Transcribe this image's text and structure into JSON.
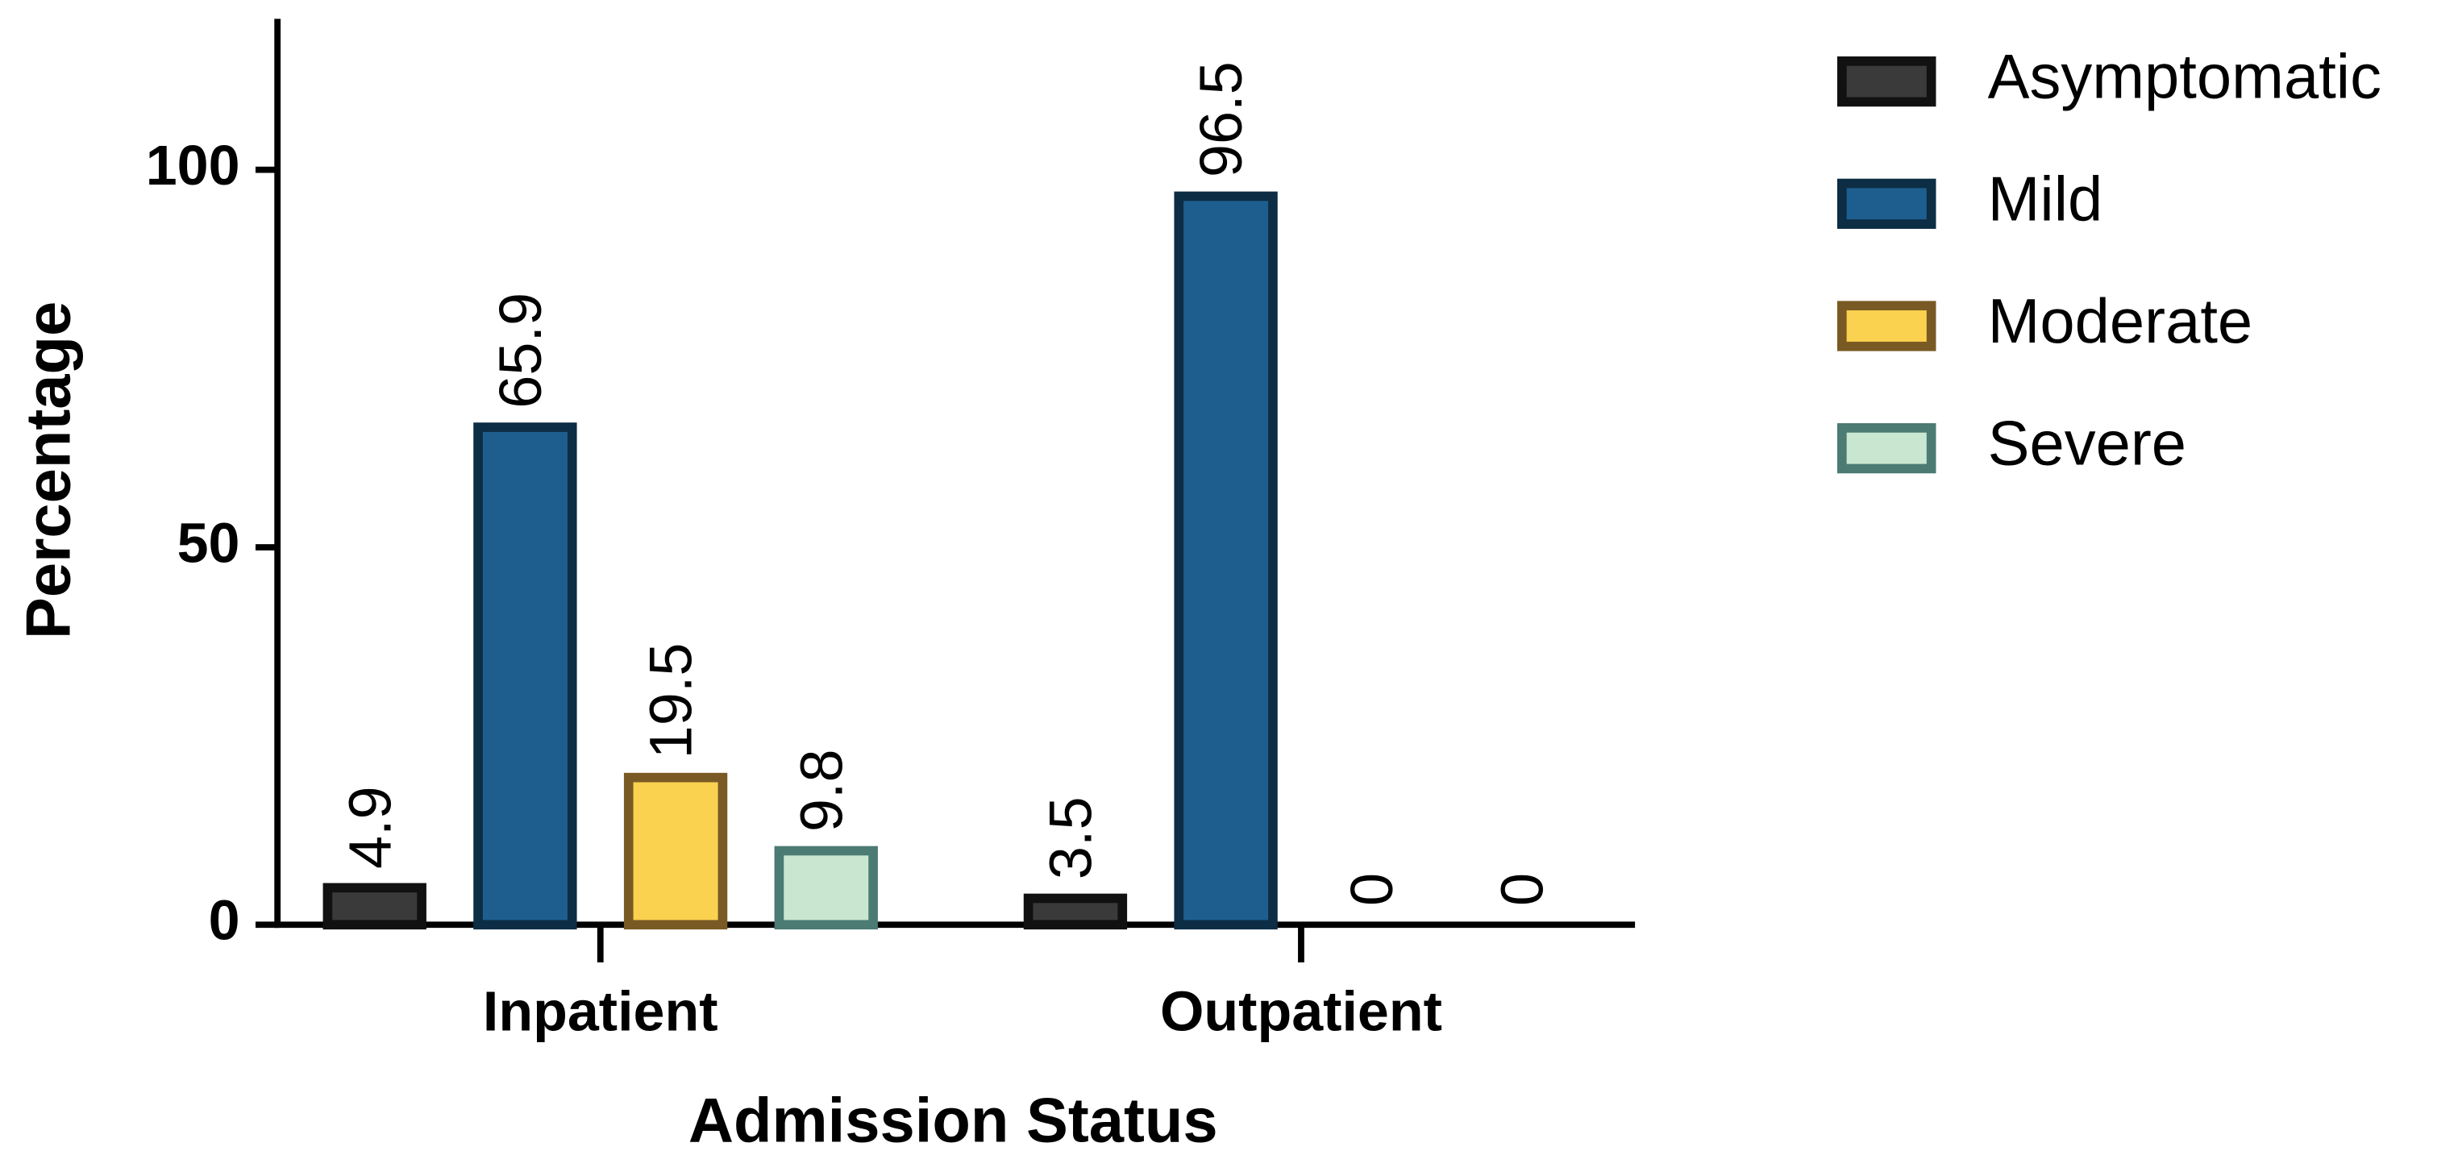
{
  "chart_data": {
    "type": "bar",
    "x_label": "Admission  Status",
    "y_label": "Percentage",
    "categories": [
      "Inpatient",
      "Outpatient"
    ],
    "series": [
      {
        "name": "Asymptomatic",
        "color": "#3a3a3a",
        "edgecolor": "#111111",
        "values": [
          4.9,
          3.5
        ]
      },
      {
        "name": "Mild",
        "color": "#1e5e8e",
        "edgecolor": "#0c2d44",
        "values": [
          65.9,
          96.5
        ]
      },
      {
        "name": "Moderate",
        "color": "#fad24f",
        "edgecolor": "#7a5a24",
        "values": [
          19.5,
          0
        ]
      },
      {
        "name": "Severe",
        "color": "#c9e7d0",
        "edgecolor": "#4b7b73",
        "values": [
          9.8,
          0
        ]
      }
    ],
    "ylim": [
      0,
      120
    ],
    "yticks": [
      0,
      50,
      100
    ],
    "grid": false,
    "legend": "right"
  }
}
